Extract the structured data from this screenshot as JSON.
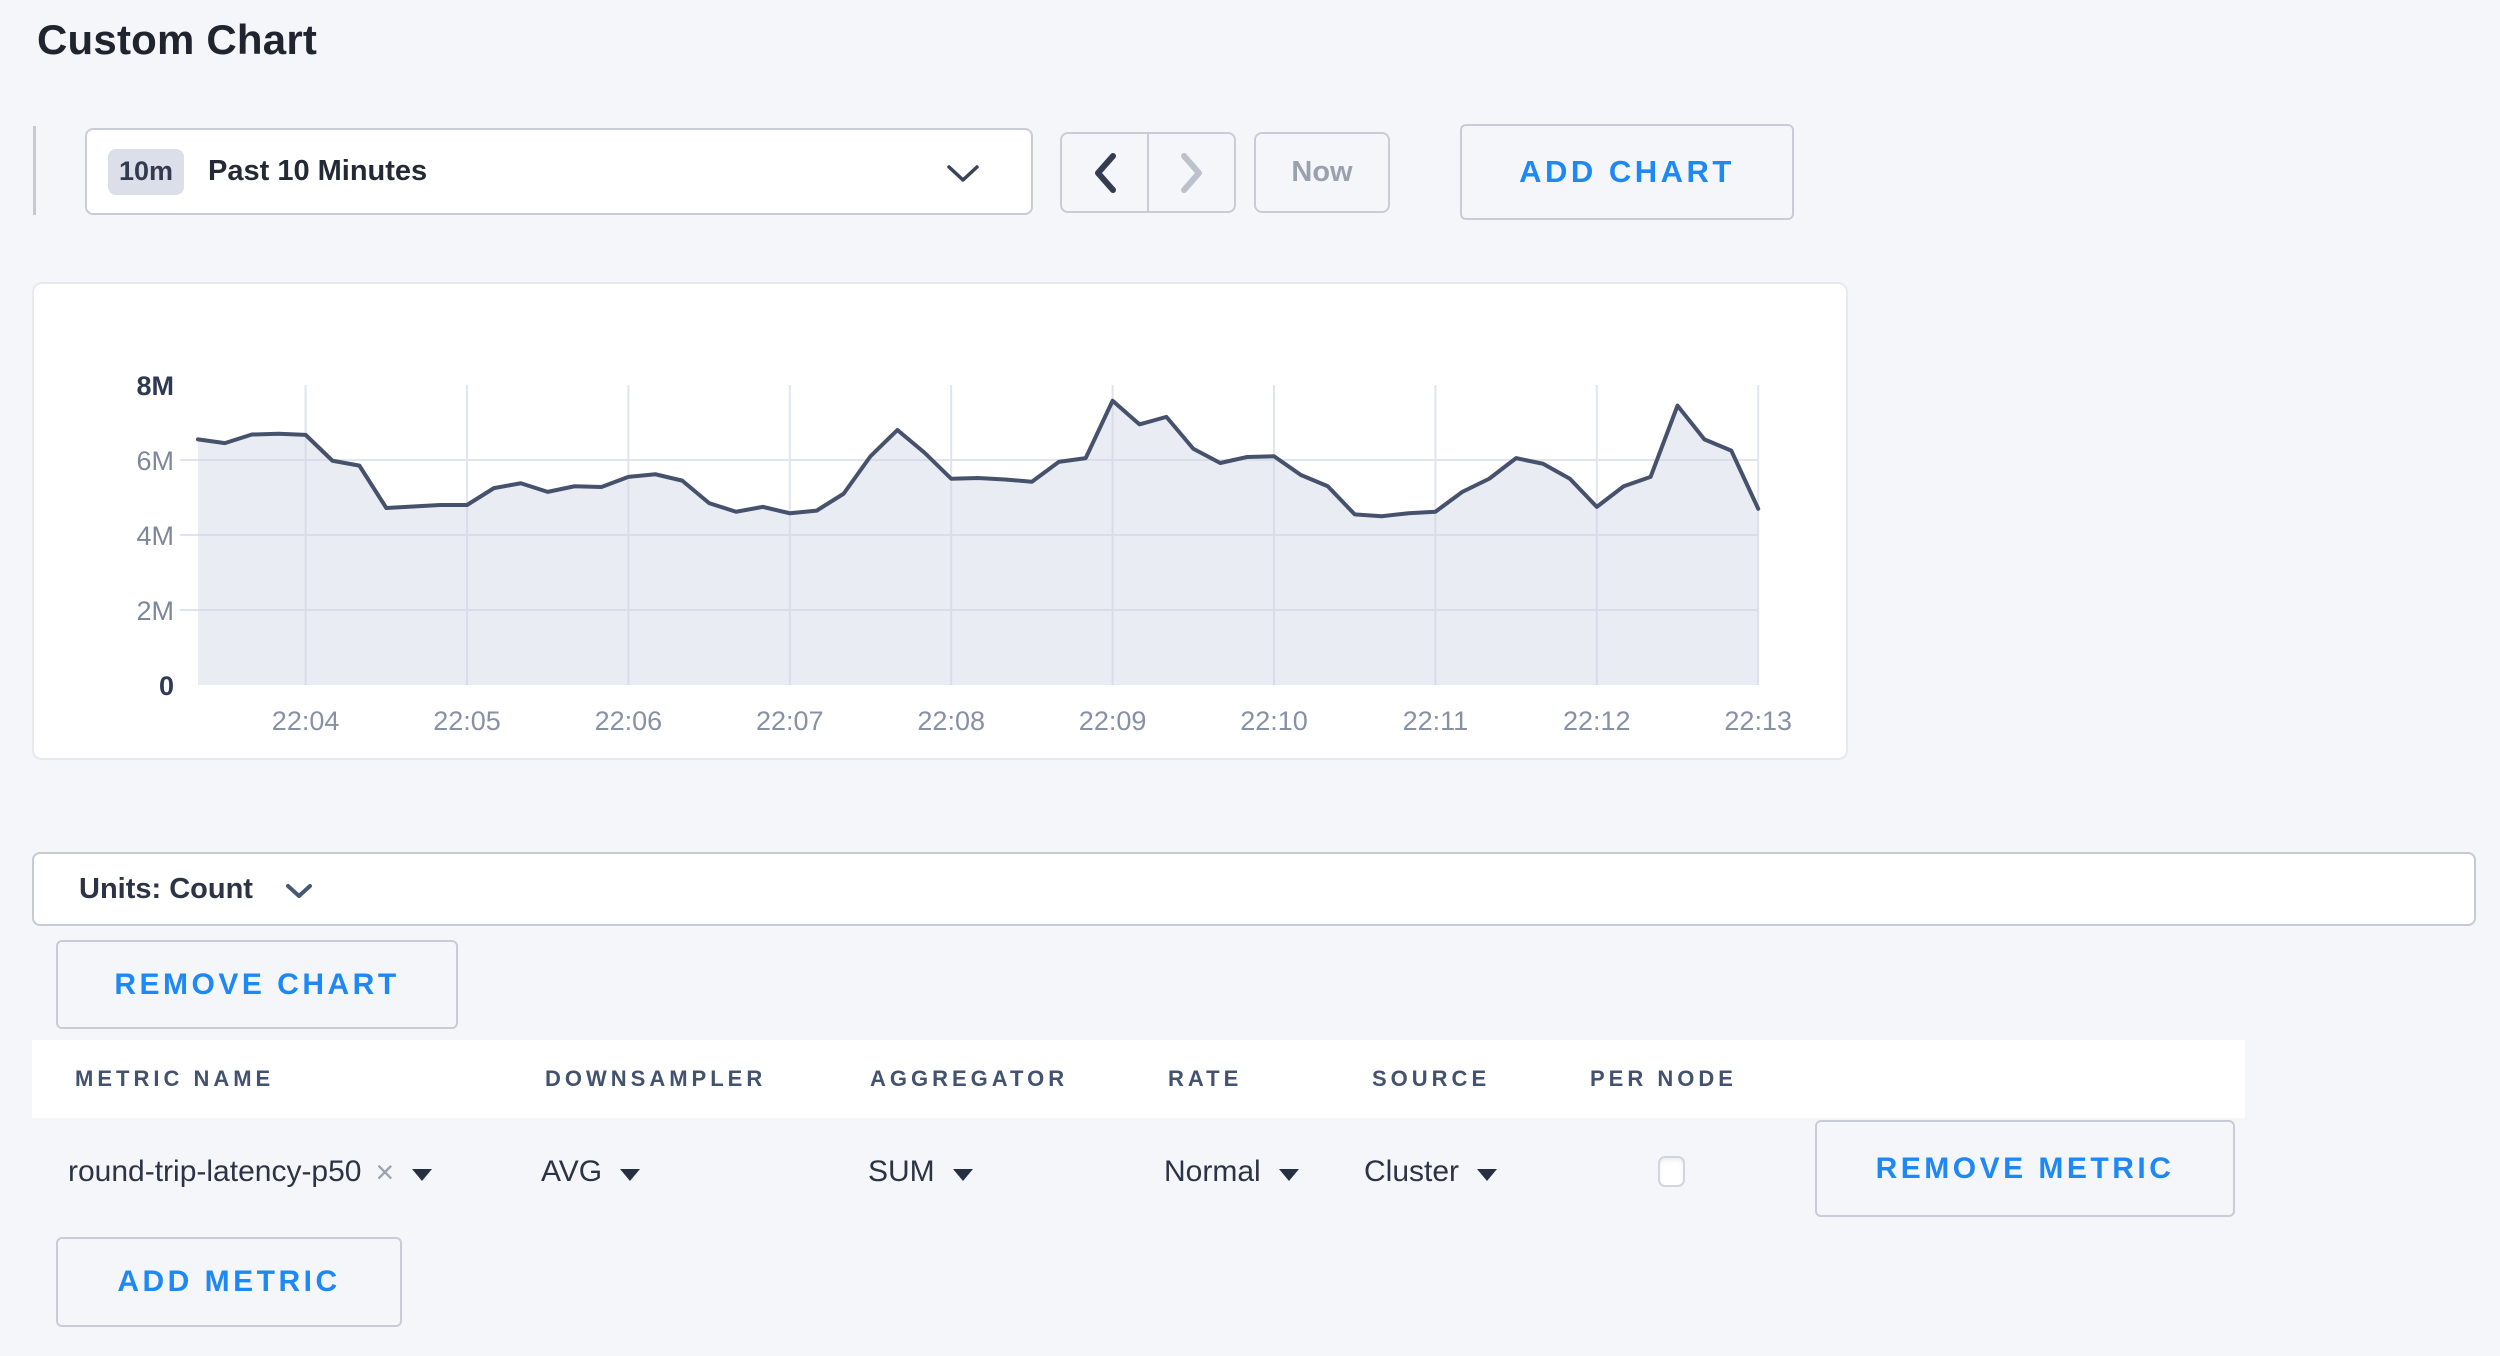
{
  "page": {
    "title": "Custom Chart",
    "background_color": "#f5f6fa",
    "accent_blue": "#1e88f5",
    "border_gray": "#c9ccd6"
  },
  "toolbar": {
    "range_badge": "10m",
    "range_label": "Past 10 Minutes",
    "now_label": "Now",
    "add_chart_label": "ADD CHART"
  },
  "icons": {
    "time_dropdown": "chevron-down",
    "prev": "chevron-left",
    "next": "chevron-right",
    "units_dropdown": "chevron-down",
    "metric_clear": "×",
    "dropdown_caret": "caret-down"
  },
  "chart_data": {
    "type": "area",
    "title": "",
    "unit": "count",
    "x_start": "22:03:20",
    "x_interval_seconds": 10,
    "x_ticks": [
      "22:04",
      "22:05",
      "22:06",
      "22:07",
      "22:08",
      "22:09",
      "22:10",
      "22:11",
      "22:12",
      "22:13"
    ],
    "y_ticks": [
      {
        "label": "0",
        "value": 0,
        "bold": true,
        "grid": false
      },
      {
        "label": "2M",
        "value": 2,
        "bold": false,
        "grid": true
      },
      {
        "label": "4M",
        "value": 4,
        "bold": false,
        "grid": true
      },
      {
        "label": "6M",
        "value": 6,
        "bold": false,
        "grid": true
      },
      {
        "label": "8M",
        "value": 8,
        "bold": true,
        "grid": false
      }
    ],
    "ylim_millions": [
      0,
      8
    ],
    "grid": true,
    "legend": false,
    "line_color": "#46516c",
    "fill_color": "rgba(206,212,226,0.45)",
    "series": [
      {
        "name": "round-trip-latency-p50",
        "values_millions": [
          6.55,
          6.45,
          6.68,
          6.7,
          6.67,
          5.98,
          5.85,
          4.72,
          4.76,
          4.8,
          4.8,
          5.25,
          5.38,
          5.15,
          5.3,
          5.28,
          5.55,
          5.62,
          5.45,
          4.85,
          4.62,
          4.75,
          4.58,
          4.65,
          5.1,
          6.1,
          6.8,
          6.2,
          5.5,
          5.52,
          5.48,
          5.42,
          5.95,
          6.05,
          7.58,
          6.95,
          7.15,
          6.3,
          5.92,
          6.08,
          6.1,
          5.6,
          5.3,
          4.55,
          4.5,
          4.58,
          4.62,
          5.15,
          5.5,
          6.05,
          5.9,
          5.5,
          4.75,
          5.3,
          5.55,
          7.45,
          6.55,
          6.25,
          4.7
        ]
      }
    ]
  },
  "units_bar": {
    "label": "Units: Count"
  },
  "chart_actions": {
    "remove_chart_label": "REMOVE CHART"
  },
  "metrics_table": {
    "columns": [
      "METRIC NAME",
      "DOWNSAMPLER",
      "AGGREGATOR",
      "RATE",
      "SOURCE",
      "PER NODE"
    ],
    "rows": [
      {
        "metric_name": "round-trip-latency-p50",
        "downsampler": "AVG",
        "aggregator": "SUM",
        "rate": "Normal",
        "source": "Cluster",
        "per_node_checked": false,
        "remove_label": "REMOVE METRIC"
      }
    ],
    "add_metric_label": "ADD METRIC"
  }
}
